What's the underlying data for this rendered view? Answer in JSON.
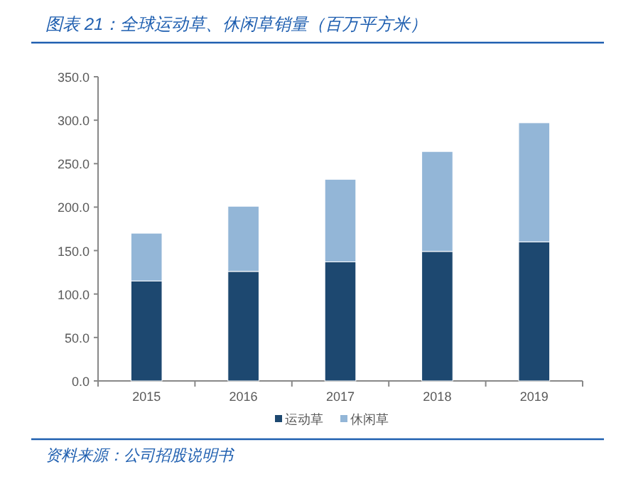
{
  "chart_data": {
    "type": "bar",
    "stacked": true,
    "title": "图表 21：全球运动草、休闲草销量（百万平方米）",
    "categories": [
      "2015",
      "2016",
      "2017",
      "2018",
      "2019"
    ],
    "series": [
      {
        "name": "运动草",
        "color": "#1d4870",
        "values": [
          115,
          126,
          137,
          149,
          160
        ]
      },
      {
        "name": "休闲草",
        "color": "#93b6d7",
        "values": [
          55,
          75,
          95,
          115,
          137
        ]
      }
    ],
    "ylim": [
      0,
      350
    ],
    "yticks": [
      {
        "value": 0,
        "label": "0.0"
      },
      {
        "value": 50,
        "label": "50.0"
      },
      {
        "value": 100,
        "label": "100.0"
      },
      {
        "value": 150,
        "label": "150.0"
      },
      {
        "value": 200,
        "label": "200.0"
      },
      {
        "value": 250,
        "label": "250.0"
      },
      {
        "value": 300,
        "label": "300.0"
      },
      {
        "value": 350,
        "label": "350.0"
      }
    ],
    "legend": "bottom",
    "annotations": [
      "资料来源：公司招股说明书"
    ]
  }
}
